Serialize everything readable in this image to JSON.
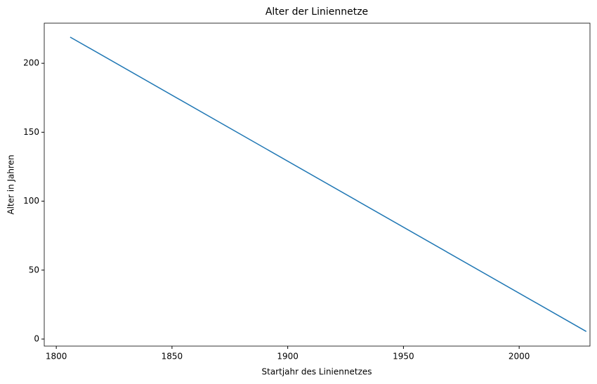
{
  "chart_data": {
    "type": "line",
    "title": "Alter der Liniennetze",
    "x_label": "Startjahr des Liniennetzes",
    "y_label": "Alter in Jahren",
    "series": [
      {
        "color": "#1f77b4",
        "x": [
          1806,
          2029
        ],
        "values": [
          219,
          5.5
        ]
      }
    ],
    "xlim": [
      1794.8,
      2030.6
    ],
    "ylim": [
      -5.1,
      229.1
    ],
    "xticks": [
      1800,
      1850,
      1900,
      1950,
      2000
    ],
    "yticks": [
      0,
      50,
      100,
      150,
      200
    ],
    "grid": false
  }
}
